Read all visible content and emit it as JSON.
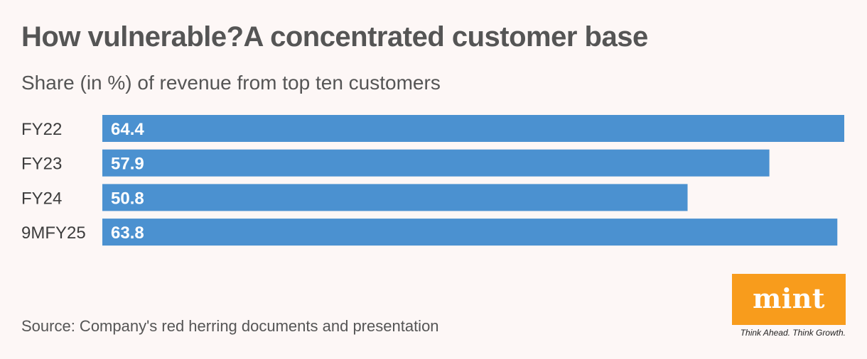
{
  "header": {
    "title": "How vulnerable?A concentrated customer base",
    "subtitle": "Share (in %) of revenue from top ten customers"
  },
  "footer": {
    "source": "Source: Company's red herring documents and presentation"
  },
  "logo": {
    "word": "mint",
    "tagline": "Think Ahead. Think Growth.",
    "color": "#f89c1c"
  },
  "chart_data": {
    "type": "bar",
    "orientation": "horizontal",
    "title": "How vulnerable?A concentrated customer base",
    "subtitle": "Share (in %) of revenue from top ten customers",
    "categories": [
      "FY22",
      "FY23",
      "FY24",
      "9MFY25"
    ],
    "values": [
      64.4,
      57.9,
      50.8,
      63.8
    ],
    "value_labels": [
      "64.4",
      "57.9",
      "50.8",
      "63.8"
    ],
    "xlim": [
      0,
      64.4
    ],
    "bar_color": "#4b91d0",
    "grid": false,
    "legend": "none",
    "data_labels": "inside-left"
  }
}
